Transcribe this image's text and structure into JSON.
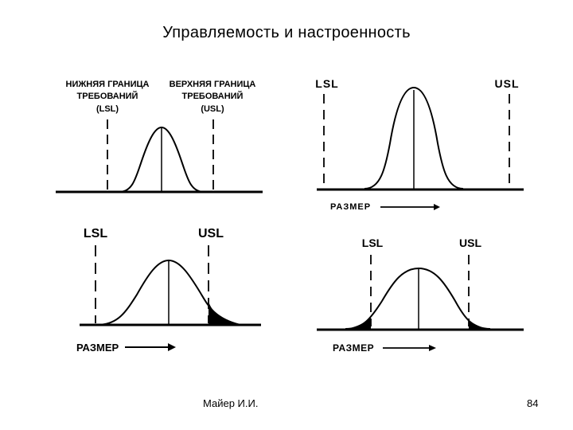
{
  "slide": {
    "title": "Управляемость и настроенность",
    "author": "Майер И.И.",
    "page_number": "84"
  },
  "panels": {
    "top_left": {
      "lsl_label_line1": "НИЖНЯЯ ГРАНИЦА",
      "lsl_label_line2": "ТРЕБОВАНИЙ",
      "lsl_label_line3": "(LSL)",
      "usl_label_line1": "ВЕРХНЯЯ ГРАНИЦА",
      "usl_label_line2": "ТРЕБОВАНИЙ",
      "usl_label_line3": "(USL)"
    },
    "top_right": {
      "lsl_label": "LSL",
      "usl_label": "USL",
      "axis_label": "РАЗМЕР"
    },
    "bottom_left": {
      "lsl_label": "LSL",
      "usl_label": "USL",
      "axis_label": "РАЗМЕР"
    },
    "bottom_right": {
      "lsl_label": "LSL",
      "usl_label": "USL",
      "axis_label": "РАЗМЕР"
    }
  }
}
